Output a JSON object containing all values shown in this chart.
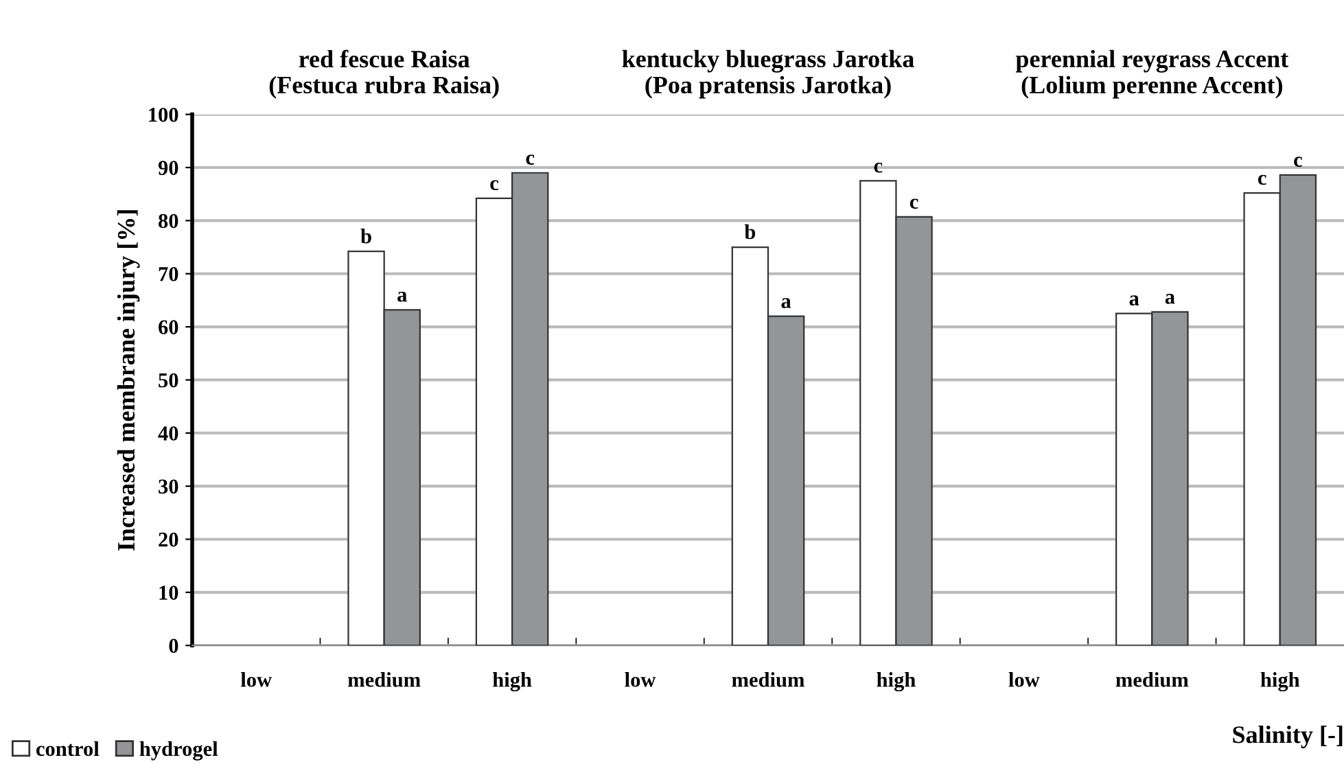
{
  "chart_data": {
    "type": "bar",
    "categories": [
      "low",
      "medium",
      "high",
      "low",
      "medium",
      "high",
      "low",
      "medium",
      "high"
    ],
    "series": [
      {
        "name": "control",
        "color": "#ffffff",
        "values": [
          null,
          74.2,
          84.2,
          null,
          75,
          87.5,
          null,
          62.5,
          85.2
        ],
        "value_labels": [
          null,
          "b",
          "c",
          null,
          "b",
          "c",
          null,
          "a",
          "c"
        ]
      },
      {
        "name": "hydrogel",
        "color": "#939598",
        "values": [
          null,
          63.2,
          89,
          null,
          62,
          80.7,
          null,
          62.8,
          88.6
        ],
        "value_labels": [
          null,
          "a",
          "c",
          null,
          "a",
          "c",
          null,
          "a",
          "c"
        ]
      }
    ],
    "ylim": [
      0,
      100
    ],
    "yticks": [
      0,
      10,
      20,
      30,
      40,
      50,
      60,
      70,
      80,
      90,
      100
    ],
    "ylabel": "Increased membrane injury [%]",
    "xlabel": "Salinity [-]",
    "annotations": [
      "red fescue Raisa\n(Festuca rubra Raisa)",
      "kentucky bluegrass Jarotka\n(Poa pratensis Jarotka)",
      "perennial reygrass Accent\n(Lolium perenne Accent)"
    ],
    "grid": "y",
    "legend": "bottom left"
  }
}
